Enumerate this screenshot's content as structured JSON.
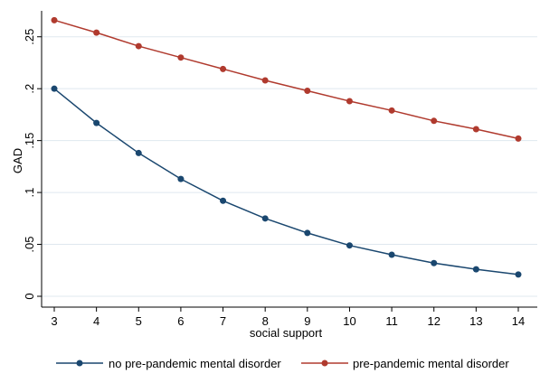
{
  "chart_data": {
    "type": "line",
    "xlabel": "social support",
    "ylabel": "GAD",
    "x": [
      3,
      4,
      5,
      6,
      7,
      8,
      9,
      10,
      11,
      12,
      13,
      14
    ],
    "xlim": [
      3,
      14
    ],
    "ylim": [
      0,
      0.275
    ],
    "y_ticks": [
      0,
      0.05,
      0.1,
      0.15,
      0.2,
      0.25
    ],
    "y_tick_labels": [
      "0",
      ".05",
      ".1",
      ".15",
      ".2",
      ".25"
    ],
    "grid": "horizontal",
    "legend_position": "bottom",
    "series": [
      {
        "name": "no pre-pandemic mental disorder",
        "color": "#1a476f",
        "values": [
          0.2,
          0.167,
          0.138,
          0.113,
          0.092,
          0.075,
          0.061,
          0.049,
          0.04,
          0.032,
          0.026,
          0.021
        ]
      },
      {
        "name": "pre-pandemic mental disorder",
        "color": "#b03a2e",
        "values": [
          0.266,
          0.254,
          0.241,
          0.23,
          0.219,
          0.208,
          0.198,
          0.188,
          0.179,
          0.169,
          0.161,
          0.152
        ]
      }
    ]
  }
}
